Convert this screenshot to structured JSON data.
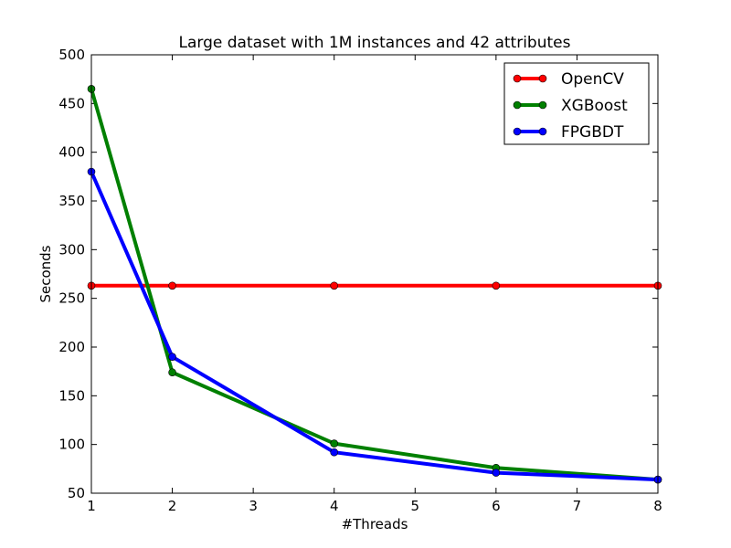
{
  "chart_data": {
    "type": "line",
    "title": "Large dataset with 1M instances and 42 attributes",
    "xlabel": "#Threads",
    "ylabel": "Seconds",
    "xlim": [
      1,
      8
    ],
    "ylim": [
      50,
      500
    ],
    "xticks": [
      "1",
      "2",
      "3",
      "4",
      "5",
      "6",
      "7",
      "8"
    ],
    "yticks": [
      "50",
      "100",
      "150",
      "200",
      "250",
      "300",
      "350",
      "400",
      "450",
      "500"
    ],
    "grid": false,
    "legend_position": "top-right",
    "series": [
      {
        "name": "OpenCV",
        "color": "#ff0000",
        "x": [
          1,
          2,
          4,
          6,
          8
        ],
        "y": [
          263,
          263,
          263,
          263,
          263
        ]
      },
      {
        "name": "XGBoost",
        "color": "#008000",
        "x": [
          1,
          2,
          4,
          6,
          8
        ],
        "y": [
          465,
          174,
          101,
          76,
          64
        ]
      },
      {
        "name": "FPGBDT",
        "color": "#0000ff",
        "x": [
          1,
          2,
          4,
          6,
          8
        ],
        "y": [
          380,
          190,
          92,
          71,
          64
        ]
      }
    ]
  }
}
